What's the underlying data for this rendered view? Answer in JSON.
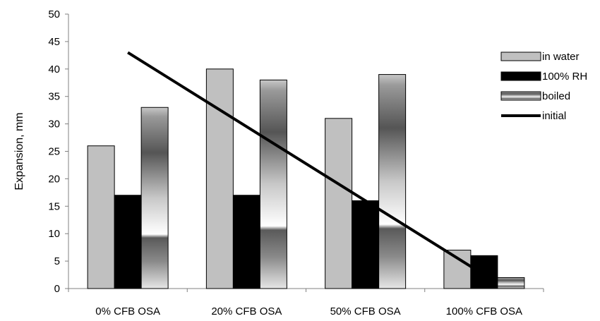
{
  "chart_data": {
    "type": "bar",
    "title": "",
    "xlabel": "",
    "ylabel": "Expansion, mm",
    "ylim": [
      0,
      50
    ],
    "yticks": [
      0,
      5,
      10,
      15,
      20,
      25,
      30,
      35,
      40,
      45,
      50
    ],
    "grid": false,
    "legend_position": "right",
    "categories": [
      "0% CFB OSA",
      "20% CFB OSA",
      "50% CFB OSA",
      "100% CFB OSA"
    ],
    "series": [
      {
        "name": "in water",
        "kind": "bar",
        "style": "light-gray",
        "color": "#c0c0c0",
        "values": [
          26,
          40,
          31,
          7
        ]
      },
      {
        "name": "100% RH",
        "kind": "bar",
        "style": "black",
        "color": "#000000",
        "values": [
          17,
          17,
          16,
          6
        ]
      },
      {
        "name": "boiled",
        "kind": "bar",
        "style": "gradient-dark-white-dark",
        "color": "#555555",
        "values": [
          33,
          38,
          39,
          2
        ]
      },
      {
        "name": "initial",
        "kind": "line",
        "style": "black-line",
        "color": "#000000",
        "x": [
          "0% CFB OSA",
          "100% CFB OSA"
        ],
        "values": [
          43,
          2.5
        ]
      }
    ]
  }
}
